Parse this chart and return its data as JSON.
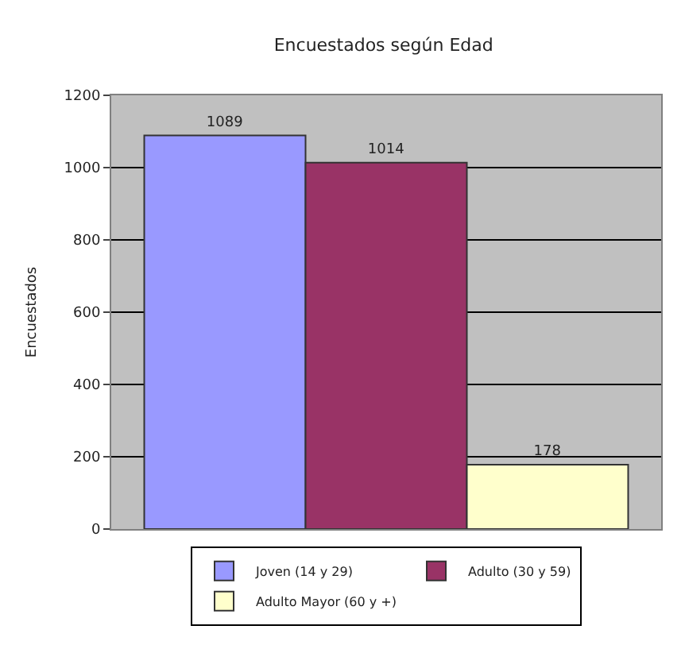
{
  "chart_data": {
    "type": "bar",
    "title": "Encuestados según Edad",
    "ylabel": "Encuestados",
    "categories": [
      null
    ],
    "series": [
      {
        "name": "Joven (14 y 29)",
        "color": "#9999ff",
        "values": [
          1089
        ]
      },
      {
        "name": "Adulto (30 y 59)",
        "color": "#993366",
        "values": [
          1014
        ]
      },
      {
        "name": "Adulto Mayor (60 y +)",
        "color": "#ffffcc",
        "values": [
          178
        ]
      }
    ],
    "ylim": [
      0,
      1200
    ],
    "yticks": [
      0,
      200,
      400,
      600,
      800,
      1000,
      1200
    ],
    "grid": "y",
    "legend": "bottom",
    "data_labels": true
  }
}
